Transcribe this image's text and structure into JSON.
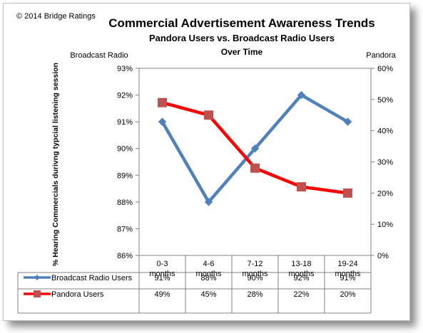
{
  "copyright": "© 2014 Bridge Ratings",
  "chart_data": {
    "type": "line",
    "title": "Commercial Advertisement Awareness Trends",
    "subtitle": "Pandora Users vs. Broadcast Radio Users",
    "subtitle2": "Over Time",
    "ylabel": "% Hearing Commercials durivng typcial listening session",
    "left_axis_title": "Broadcast Radio",
    "right_axis_title": "Pandora",
    "categories": [
      [
        "0-3",
        "months"
      ],
      [
        "4-6",
        "months"
      ],
      [
        "7-12",
        "months"
      ],
      [
        "13-18",
        "months"
      ],
      [
        "19-24",
        "months"
      ]
    ],
    "ylim_left": [
      86,
      93
    ],
    "ylim_right": [
      0,
      60
    ],
    "yticks_left": [
      "86%",
      "87%",
      "88%",
      "89%",
      "90%",
      "91%",
      "92%",
      "93%"
    ],
    "yticks_right": [
      "0%",
      "10%",
      "20%",
      "30%",
      "40%",
      "50%",
      "60%"
    ],
    "grid": false,
    "series": [
      {
        "name": "Broadcast Radio Users",
        "axis": "left",
        "color": "#4f81bd",
        "marker": "diamond",
        "values": [
          91,
          88,
          90,
          92,
          91
        ],
        "labels": [
          "91%",
          "88%",
          "90%",
          "92%",
          "91%"
        ]
      },
      {
        "name": "Pandora Users",
        "axis": "right",
        "color": "#ff0000",
        "marker_color": "#c0504d",
        "marker": "square",
        "values": [
          49,
          45,
          28,
          22,
          20
        ],
        "labels": [
          "49%",
          "45%",
          "28%",
          "22%",
          "20%"
        ]
      }
    ]
  }
}
